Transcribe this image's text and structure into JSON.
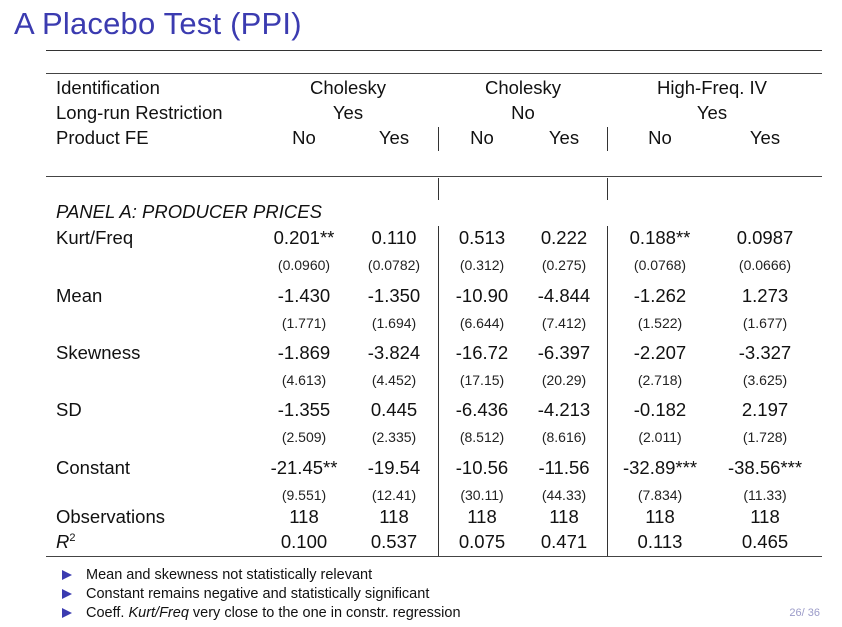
{
  "title": "A Placebo Test (PPI)",
  "header": {
    "row_labels": [
      "Identification",
      "Long-run Restriction",
      "Product FE"
    ],
    "identification": [
      "Cholesky",
      "Cholesky",
      "High-Freq. IV"
    ],
    "long_run": [
      "Yes",
      "No",
      "Yes"
    ],
    "product_fe": [
      "No",
      "Yes",
      "No",
      "Yes",
      "No",
      "Yes"
    ]
  },
  "panel_title": "PANEL A: PRODUCER PRICES",
  "rows": [
    {
      "label": "Kurt/Freq",
      "coef": [
        "0.201**",
        "0.110",
        "0.513",
        "0.222",
        "0.188**",
        "0.0987"
      ],
      "se": [
        "(0.0960)",
        "(0.0782)",
        "(0.312)",
        "(0.275)",
        "(0.0768)",
        "(0.0666)"
      ]
    },
    {
      "label": "Mean",
      "coef": [
        "-1.430",
        "-1.350",
        "-10.90",
        "-4.844",
        "-1.262",
        "1.273"
      ],
      "se": [
        "(1.771)",
        "(1.694)",
        "(6.644)",
        "(7.412)",
        "(1.522)",
        "(1.677)"
      ]
    },
    {
      "label": "Skewness",
      "coef": [
        "-1.869",
        "-3.824",
        "-16.72",
        "-6.397",
        "-2.207",
        "-3.327"
      ],
      "se": [
        "(4.613)",
        "(4.452)",
        "(17.15)",
        "(20.29)",
        "(2.718)",
        "(3.625)"
      ]
    },
    {
      "label": "SD",
      "coef": [
        "-1.355",
        "0.445",
        "-6.436",
        "-4.213",
        "-0.182",
        "2.197"
      ],
      "se": [
        "(2.509)",
        "(2.335)",
        "(8.512)",
        "(8.616)",
        "(2.011)",
        "(1.728)"
      ]
    },
    {
      "label": "Constant",
      "coef": [
        "-21.45**",
        "-19.54",
        "-10.56",
        "-11.56",
        "-32.89***",
        "-38.56***"
      ],
      "se": [
        "(9.551)",
        "(12.41)",
        "(30.11)",
        "(44.33)",
        "(7.834)",
        "(11.33)"
      ]
    }
  ],
  "observations": {
    "label": "Observations",
    "values": [
      "118",
      "118",
      "118",
      "118",
      "118",
      "118"
    ]
  },
  "r2": {
    "label": "R",
    "sup": "2",
    "values": [
      "0.100",
      "0.537",
      "0.075",
      "0.471",
      "0.113",
      "0.465"
    ]
  },
  "bullets": [
    {
      "text": "Mean and skewness not statistically relevant"
    },
    {
      "text": "Constant remains negative and statistically significant"
    },
    {
      "pre": "Coeff. ",
      "em": "Kurt/Freq",
      "post": " very close to the one in constr. regression"
    }
  ],
  "page": "26/ 36",
  "colors": {
    "title": "#3b3bb0",
    "bullet": "#3b3bb0",
    "page_number": "#9b9bc8"
  }
}
